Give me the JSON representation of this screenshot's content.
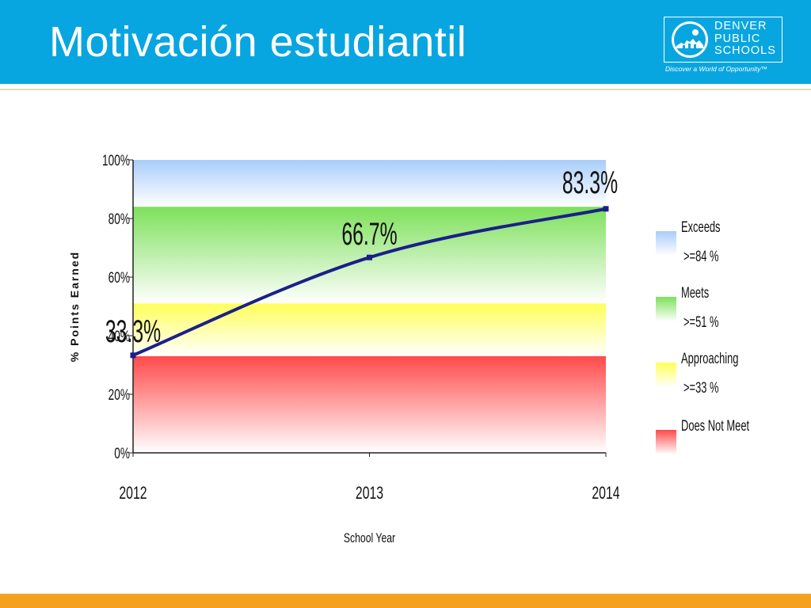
{
  "slide": {
    "title": "Motivación estudiantil"
  },
  "logo": {
    "lines": [
      "DENVER",
      "PUBLIC",
      "SCHOOLS"
    ],
    "tagline": "Discover a World of Opportunity™"
  },
  "colors": {
    "header": "#08a6e0",
    "footer": "#f4a11e",
    "line": "#1b1f8a",
    "exceeds": "#a8cdfa",
    "meets": "#7de05a",
    "approaching": "#ffff5a",
    "does_not_meet": "#ff4a4a"
  },
  "chart_data": {
    "type": "line",
    "title": "",
    "xlabel": "School Year",
    "ylabel": "% Points Earned",
    "categories": [
      "2012",
      "2013",
      "2014"
    ],
    "series": [
      {
        "values": [
          33.3,
          66.7,
          83.3
        ],
        "data_labels": [
          "33.3%",
          "66.7%",
          "83.3%"
        ]
      }
    ],
    "ylim": [
      0,
      100
    ],
    "yticks": [
      0,
      20,
      40,
      60,
      80,
      100
    ],
    "ytick_labels": [
      "0%",
      "20%",
      "40%",
      "60%",
      "80%",
      "100%"
    ],
    "bands": [
      {
        "name": "Exceeds",
        "threshold": ">=84 %",
        "from": 84,
        "to": 100,
        "color": "#a8cdfa"
      },
      {
        "name": "Meets",
        "threshold": ">=51 %",
        "from": 51,
        "to": 84,
        "color": "#7de05a"
      },
      {
        "name": "Approaching",
        "threshold": ">=33 %",
        "from": 33,
        "to": 51,
        "color": "#ffff5a"
      },
      {
        "name": "Does Not Meet",
        "threshold": "",
        "from": 0,
        "to": 33,
        "color": "#ff4a4a"
      }
    ],
    "legend_position": "right"
  }
}
